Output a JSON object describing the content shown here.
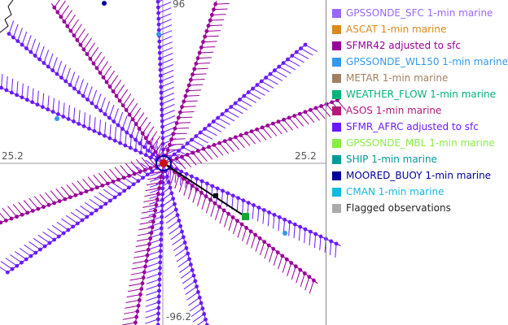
{
  "axes": {
    "top_label": "96",
    "left_label": "25.2",
    "right_label": "25.2",
    "bottom_label": "-96.2"
  },
  "legend": [
    {
      "label": "GPSSONDE_SFC 1-min marine",
      "color": "#9966ff",
      "text_color": "#9966ff"
    },
    {
      "label": "ASCAT 1-min marine",
      "color": "#d98a1a",
      "text_color": "#d98a1a"
    },
    {
      "label": "SFMR42 adjusted to sfc",
      "color": "#990099",
      "text_color": "#990099"
    },
    {
      "label": "GPSSONDE_WL150 1-min marine",
      "color": "#3399ee",
      "text_color": "#3399ee"
    },
    {
      "label": "METAR 1-min marine",
      "color": "#a08060",
      "text_color": "#a08060"
    },
    {
      "label": "WEATHER_FLOW 1-min marine",
      "color": "#00b377",
      "text_color": "#00b377"
    },
    {
      "label": "ASOS 1-min marine",
      "color": "#b3197a",
      "text_color": "#b3197a"
    },
    {
      "label": "SFMR_AFRC adjusted to sfc",
      "color": "#6b1aff",
      "text_color": "#6b1aff"
    },
    {
      "label": "GPSSONDE_MBL 1-min marine",
      "color": "#88ee44",
      "text_color": "#88ee44"
    },
    {
      "label": "SHIP 1-min marine",
      "color": "#009999",
      "text_color": "#009999"
    },
    {
      "label": "MOORED_BUOY 1-min marine",
      "color": "#000099",
      "text_color": "#000099"
    },
    {
      "label": "CMAN 1-min marine",
      "color": "#11bbdd",
      "text_color": "#11bbdd"
    },
    {
      "label": "Flagged observations",
      "color": "#aaaaaa",
      "text_color": "#222222"
    }
  ]
}
